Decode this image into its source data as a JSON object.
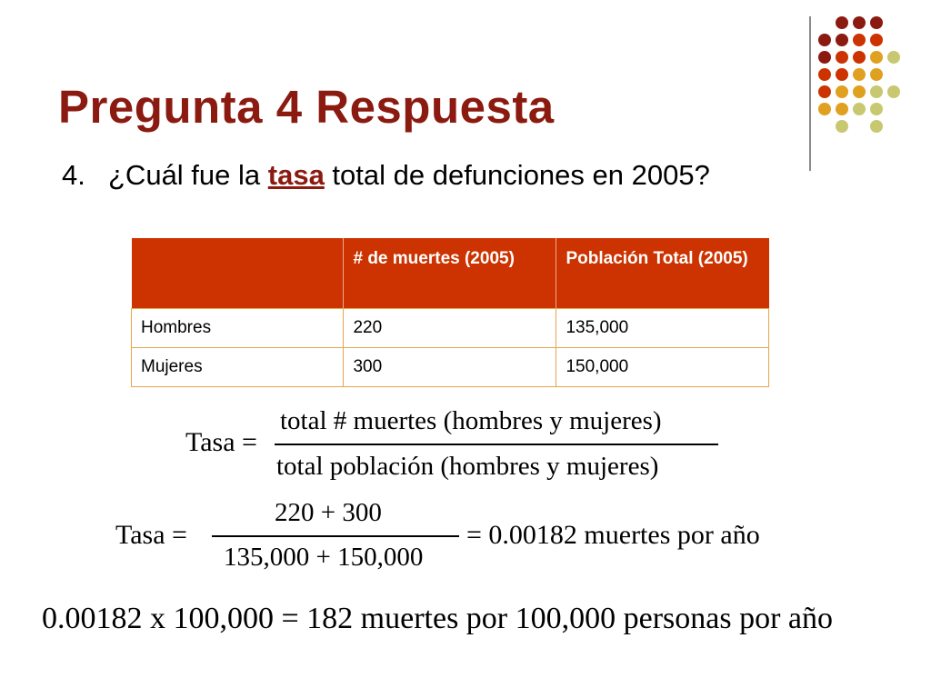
{
  "slide": {
    "title": "Pregunta 4 Respuesta",
    "question_number": "4.",
    "question_before": "¿Cuál fue la ",
    "question_keyword": "tasa",
    "question_after": " total de defunciones en 2005?"
  },
  "table": {
    "headers": [
      "",
      "# de muertes (2005)",
      "Población Total (2005)"
    ],
    "rows": [
      [
        "Hombres",
        "220",
        "135,000"
      ],
      [
        "Mujeres",
        "300",
        "150,000"
      ]
    ]
  },
  "formulas": {
    "f1_lhs": "Tasa =",
    "f1_numerator": "total # muertes (hombres y mujeres)",
    "f1_denominator": "total población (hombres y mujeres)",
    "f2_lhs": "Tasa =",
    "f2_numerator": "220 + 300",
    "f2_denominator": "135,000 + 150,000",
    "f2_rhs": "= 0.00182 muertes por año",
    "f3": "0.00182 x 100,000 = 182 muertes por 100,000 personas por año"
  },
  "colors": {
    "title": "#8b1a10",
    "table_header": "#cc3300",
    "table_border": "#e7a64a",
    "dot_palette": [
      "#8b1a10",
      "#cc3300",
      "#e0a020",
      "#c8c870"
    ]
  }
}
